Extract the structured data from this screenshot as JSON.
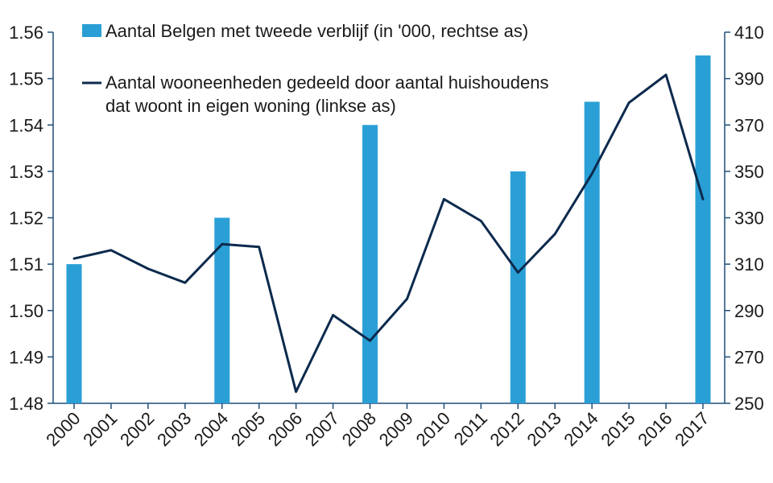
{
  "chart_data": {
    "type": "bar+line",
    "categories": [
      "2000",
      "2001",
      "2002",
      "2003",
      "2004",
      "2005",
      "2006",
      "2007",
      "2008",
      "2009",
      "2010",
      "2011",
      "2012",
      "2013",
      "2014",
      "2015",
      "2016",
      "2017"
    ],
    "series": [
      {
        "name": "Aantal Belgen met tweede verblijf (in '000, rechtse as)",
        "type": "bar",
        "axis": "right",
        "color": "#2a9fd6",
        "points": [
          {
            "x": 2000.0,
            "y": 310
          },
          {
            "x": 2004.0,
            "y": 330
          },
          {
            "x": 2008.0,
            "y": 370
          },
          {
            "x": 2012.0,
            "y": 350
          },
          {
            "x": 2014.0,
            "y": 380
          },
          {
            "x": 2017.0,
            "y": 400
          }
        ]
      },
      {
        "name": "Aantal wooneenheden gedeeld door aantal huishoudens dat woont in eigen woning (linkse as)",
        "type": "line",
        "axis": "left",
        "color": "#0c2a4d",
        "points": [
          {
            "x": 2000.0,
            "y": 1.5112
          },
          {
            "x": 2001.0,
            "y": 1.513
          },
          {
            "x": 2002.0,
            "y": 1.509
          },
          {
            "x": 2003.0,
            "y": 1.506
          },
          {
            "x": 2004.0,
            "y": 1.5143
          },
          {
            "x": 2005.0,
            "y": 1.5137
          },
          {
            "x": 2006.0,
            "y": 1.4825
          },
          {
            "x": 2007.0,
            "y": 1.499
          },
          {
            "x": 2008.0,
            "y": 1.4935
          },
          {
            "x": 2009.0,
            "y": 1.5025
          },
          {
            "x": 2010.0,
            "y": 1.524
          },
          {
            "x": 2011.0,
            "y": 1.5193
          },
          {
            "x": 2012.0,
            "y": 1.5082
          },
          {
            "x": 2013.0,
            "y": 1.5165
          },
          {
            "x": 2014.0,
            "y": 1.5295
          },
          {
            "x": 2015.0,
            "y": 1.5448
          },
          {
            "x": 2016.0,
            "y": 1.5508
          },
          {
            "x": 2017.0,
            "y": 1.524
          }
        ]
      }
    ],
    "left_axis": {
      "ylim": [
        1.48,
        1.56
      ],
      "ticks": [
        "1.48",
        "1.49",
        "1.50",
        "1.51",
        "1.52",
        "1.53",
        "1.54",
        "1.55",
        "1.56"
      ]
    },
    "right_axis": {
      "ylim": [
        250,
        410
      ],
      "ticks": [
        "250",
        "270",
        "290",
        "310",
        "330",
        "350",
        "370",
        "390",
        "410"
      ]
    },
    "legend": {
      "position": "top-left",
      "entries": [
        {
          "lines": [
            "Aantal Belgen met tweede verblijf (in '000, rechtse as)"
          ],
          "swatch": "bar",
          "color": "#2a9fd6"
        },
        {
          "lines": [
            "Aantal wooneenheden gedeeld door aantal huishoudens",
            "dat woont in eigen woning (linkse as)"
          ],
          "swatch": "line",
          "color": "#0c2a4d"
        }
      ]
    },
    "axis_color": "#1f4e79",
    "grid": false
  }
}
